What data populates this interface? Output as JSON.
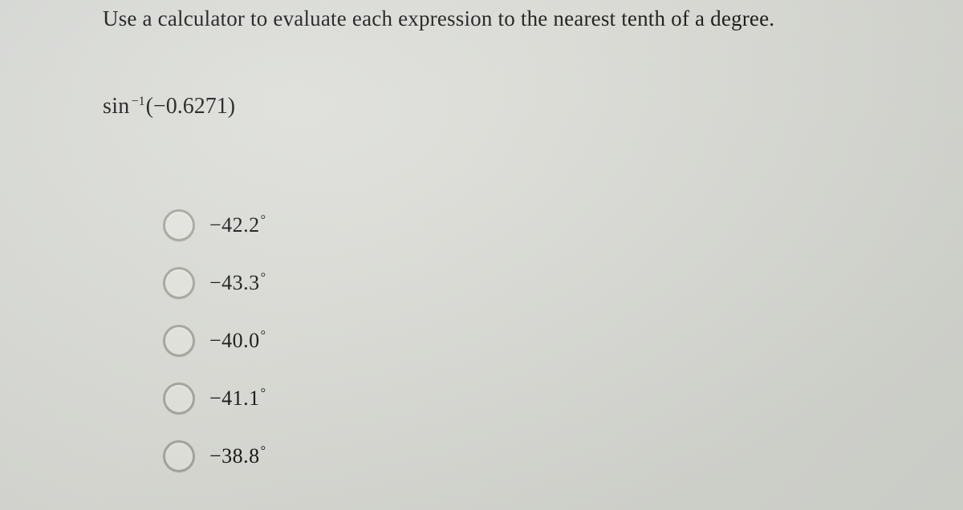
{
  "instruction": "Use a calculator to evaluate each expression to the nearest tenth of a degree.",
  "expression": {
    "fn": "sin",
    "exponent": "−1",
    "arg": "(−0.6271)"
  },
  "options": [
    {
      "value": "−42.2",
      "unit": "°"
    },
    {
      "value": "−43.3",
      "unit": "°"
    },
    {
      "value": "−40.0",
      "unit": "°"
    },
    {
      "value": "−41.1",
      "unit": "°"
    },
    {
      "value": "−38.8",
      "unit": "°"
    }
  ],
  "colors": {
    "text": "#111111",
    "radio_border": "#a6a59c",
    "radio_fill": "#e4e5df",
    "background": "#d9dbd5"
  },
  "typography": {
    "family": "serif",
    "instruction_size_pt": 20,
    "expression_size_pt": 21,
    "option_size_pt": 20
  }
}
